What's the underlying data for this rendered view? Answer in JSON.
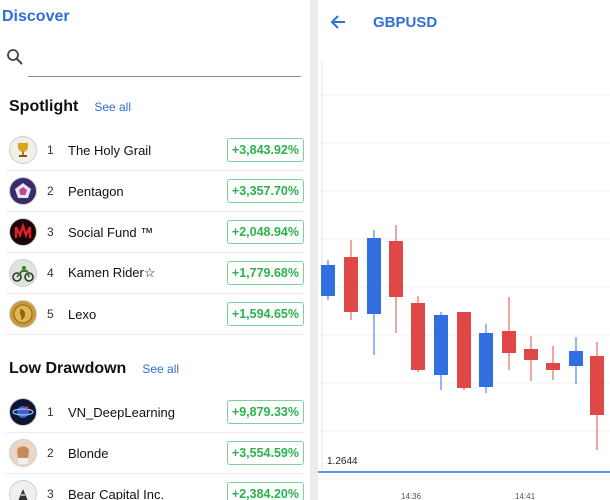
{
  "discover": {
    "title": "Discover",
    "search": {
      "placeholder": "",
      "value": ""
    },
    "spotlight": {
      "title": "Spotlight",
      "see_all": "See all",
      "items": [
        {
          "rank": "1",
          "name": "The Holy Grail",
          "pct": "+3,843.92%",
          "avatar": "trophy-avatar"
        },
        {
          "rank": "2",
          "name": "Pentagon",
          "pct": "+3,357.70%",
          "avatar": "pentagon-avatar"
        },
        {
          "rank": "3",
          "name": "Social Fund ™",
          "pct": "+2,048.94%",
          "avatar": "red-chart-avatar"
        },
        {
          "rank": "4",
          "name": "Kamen Rider☆",
          "pct": "+1,779.68%",
          "avatar": "motorbike-avatar"
        },
        {
          "rank": "5",
          "name": "Lexo",
          "pct": "+1,594.65%",
          "avatar": "coin-avatar"
        }
      ]
    },
    "low_drawdown": {
      "title": "Low Drawdown",
      "see_all": "See all",
      "items": [
        {
          "rank": "1",
          "name": "VN_DeepLearning",
          "pct": "+9,879.33%",
          "avatar": "planet-avatar"
        },
        {
          "rank": "2",
          "name": "Blonde",
          "pct": "+3,554.59%",
          "avatar": "portrait-avatar"
        },
        {
          "rank": "3",
          "name": "Bear Capital Inc.",
          "pct": "+2,384.20%",
          "avatar": "bear-avatar"
        }
      ]
    }
  },
  "chart_panel": {
    "symbol": "GBPUSD",
    "price_label": "1.2644",
    "time_labels": [
      "14:36",
      "14:41"
    ],
    "colors": {
      "up": "#2f6fe0",
      "down": "#e04848",
      "accent": "#2f6fd6",
      "pct_green": "#2bb24c"
    }
  },
  "chart_data": {
    "type": "candlestick",
    "note_colors": "blue = bullish, red = bearish",
    "candles": [
      {
        "dir": "up"
      },
      {
        "dir": "down"
      },
      {
        "dir": "up"
      },
      {
        "dir": "down"
      },
      {
        "dir": "down"
      },
      {
        "dir": "up"
      },
      {
        "dir": "down"
      },
      {
        "dir": "up"
      },
      {
        "dir": "down"
      },
      {
        "dir": "down"
      },
      {
        "dir": "down"
      },
      {
        "dir": "up"
      },
      {
        "dir": "down"
      }
    ]
  }
}
